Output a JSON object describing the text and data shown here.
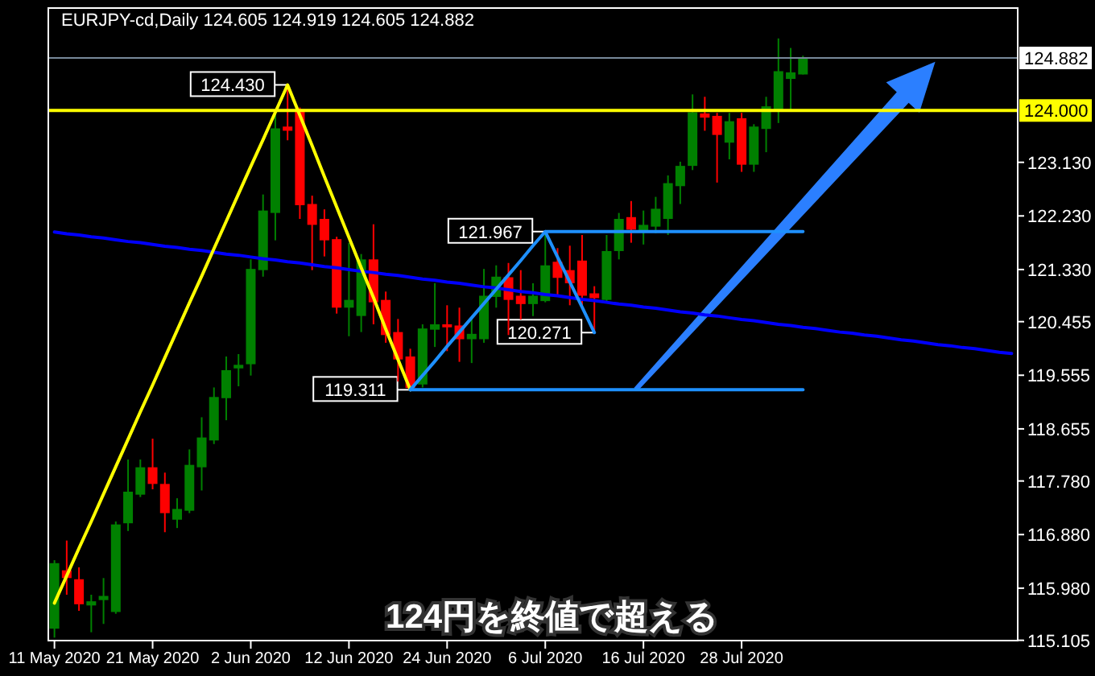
{
  "chart_data": {
    "type": "candlestick",
    "title": "EURJPY-cd,Daily  124.605 124.919 124.605 124.882",
    "annotations": [
      "124円を終値で超える"
    ],
    "categories": [
      "11 May 2020",
      null,
      null,
      null,
      null,
      null,
      null,
      null,
      "21 May 2020",
      null,
      null,
      null,
      null,
      null,
      null,
      null,
      "2 Jun 2020",
      null,
      null,
      null,
      null,
      null,
      null,
      null,
      "12 Jun 2020",
      null,
      null,
      null,
      null,
      null,
      null,
      null,
      "24 Jun 2020",
      null,
      null,
      null,
      null,
      null,
      null,
      null,
      "6 Jul 2020",
      null,
      null,
      null,
      null,
      null,
      null,
      null,
      "16 Jul 2020",
      null,
      null,
      null,
      null,
      null,
      null,
      null,
      "28 Jul 2020",
      null,
      null,
      null,
      null,
      null,
      null,
      null,
      null,
      null,
      null,
      null,
      null,
      null,
      null,
      null,
      null,
      null,
      null,
      null,
      null,
      null,
      null
    ],
    "ohlc": [
      [
        115.3,
        116.45,
        115.15,
        116.4
      ],
      [
        116.28,
        116.78,
        115.87,
        116.15
      ],
      [
        116.13,
        116.33,
        115.6,
        115.71
      ],
      [
        115.69,
        115.87,
        115.24,
        115.76
      ],
      [
        115.78,
        116.15,
        115.38,
        115.85
      ],
      [
        115.58,
        117.1,
        115.55,
        117.05
      ],
      [
        117.07,
        118.14,
        116.94,
        117.6
      ],
      [
        117.55,
        118.14,
        117.51,
        118.01
      ],
      [
        118.01,
        118.49,
        117.64,
        117.73
      ],
      [
        117.73,
        117.92,
        116.92,
        117.24
      ],
      [
        117.13,
        117.49,
        116.99,
        117.31
      ],
      [
        117.28,
        118.31,
        117.24,
        118.05
      ],
      [
        118.01,
        118.85,
        117.62,
        118.51
      ],
      [
        118.46,
        119.35,
        118.4,
        119.19
      ],
      [
        119.17,
        119.87,
        118.8,
        119.64
      ],
      [
        119.67,
        119.91,
        119.37,
        119.73
      ],
      [
        119.74,
        121.5,
        119.55,
        121.34
      ],
      [
        121.32,
        122.59,
        121.21,
        122.32
      ],
      [
        122.28,
        123.96,
        121.82,
        123.7
      ],
      [
        123.73,
        124.43,
        123.5,
        123.66
      ],
      [
        124.02,
        124.05,
        122.18,
        122.41
      ],
      [
        122.43,
        122.57,
        121.32,
        122.08
      ],
      [
        122.18,
        122.34,
        121.55,
        121.82
      ],
      [
        121.84,
        121.88,
        120.59,
        120.69
      ],
      [
        120.69,
        121.78,
        120.21,
        120.82
      ],
      [
        120.55,
        121.59,
        120.28,
        121.5
      ],
      [
        121.5,
        122.09,
        120.41,
        120.78
      ],
      [
        120.82,
        120.96,
        120.1,
        120.23
      ],
      [
        120.28,
        120.5,
        119.45,
        119.82
      ],
      [
        119.87,
        120.0,
        119.311,
        119.34
      ],
      [
        119.4,
        120.41,
        119.35,
        120.34
      ],
      [
        120.32,
        121.1,
        120.03,
        120.41
      ],
      [
        120.41,
        120.73,
        119.96,
        120.36
      ],
      [
        120.39,
        120.69,
        119.78,
        120.16
      ],
      [
        120.16,
        120.5,
        119.76,
        120.25
      ],
      [
        120.16,
        121.34,
        120.1,
        120.89
      ],
      [
        120.87,
        121.4,
        120.69,
        121.21
      ],
      [
        121.2,
        121.44,
        120.23,
        120.82
      ],
      [
        120.89,
        121.32,
        120.49,
        120.75
      ],
      [
        120.75,
        121.1,
        120.55,
        120.89
      ],
      [
        120.8,
        121.967,
        120.78,
        121.4
      ],
      [
        121.46,
        121.69,
        120.89,
        121.19
      ],
      [
        121.32,
        121.73,
        120.73,
        121.1
      ],
      [
        121.48,
        121.91,
        120.73,
        120.89
      ],
      [
        120.93,
        121.05,
        120.271,
        120.85
      ],
      [
        120.82,
        121.91,
        120.8,
        121.64
      ],
      [
        121.64,
        122.28,
        121.5,
        122.18
      ],
      [
        122.21,
        122.48,
        121.78,
        122.0
      ],
      [
        121.98,
        122.32,
        121.75,
        122.08
      ],
      [
        122.05,
        122.55,
        121.94,
        122.35
      ],
      [
        122.18,
        122.91,
        121.91,
        122.78
      ],
      [
        122.73,
        123.14,
        122.43,
        123.07
      ],
      [
        123.07,
        124.27,
        123.0,
        123.97
      ],
      [
        123.95,
        124.23,
        123.66,
        123.88
      ],
      [
        123.91,
        123.96,
        122.79,
        123.59
      ],
      [
        123.46,
        123.96,
        123.18,
        123.82
      ],
      [
        123.87,
        123.96,
        122.97,
        123.09
      ],
      [
        123.09,
        123.77,
        122.97,
        123.73
      ],
      [
        123.69,
        124.23,
        123.3,
        124.07
      ],
      [
        124.0,
        125.21,
        123.79,
        124.66
      ],
      [
        124.53,
        125.05,
        124.0,
        124.64
      ],
      [
        124.605,
        124.919,
        124.605,
        124.882
      ],
      null,
      null,
      null,
      null,
      null,
      null,
      null,
      null,
      null,
      null,
      null,
      null,
      null,
      null,
      null,
      null,
      null
    ],
    "colors": [
      "#008000",
      "#ff0000",
      "#ff0000",
      "#008000",
      "#008000",
      "#008000",
      "#008000",
      "#008000",
      "#ff0000",
      "#ff0000",
      "#008000",
      "#008000",
      "#008000",
      "#008000",
      "#008000",
      "#008000",
      "#008000",
      "#008000",
      "#008000",
      "#ff0000",
      "#ff0000",
      "#ff0000",
      "#ff0000",
      "#ff0000",
      "#008000",
      "#008000",
      "#ff0000",
      "#ff0000",
      "#ff0000",
      "#ff0000",
      "#008000",
      "#008000",
      "#ff0000",
      "#ff0000",
      "#008000",
      "#008000",
      "#008000",
      "#ff0000",
      "#ff0000",
      "#008000",
      "#008000",
      "#ff0000",
      "#ff0000",
      "#ff0000",
      "#ff0000",
      "#008000",
      "#008000",
      "#ff0000",
      "#008000",
      "#008000",
      "#008000",
      "#008000",
      "#008000",
      "#ff0000",
      "#ff0000",
      "#008000",
      "#ff0000",
      "#008000",
      "#008000",
      "#008000",
      "#008000",
      "#008000",
      null,
      null,
      null,
      null,
      null,
      null,
      null,
      null,
      null,
      null,
      null,
      null,
      null,
      null,
      null,
      null,
      null
    ],
    "series": [
      {
        "type": "line",
        "color": "#0000ff",
        "values": [
          121.96,
          121.93,
          121.91,
          121.88,
          121.86,
          121.83,
          121.8,
          121.78,
          121.75,
          121.72,
          121.7,
          121.67,
          121.65,
          121.62,
          121.59,
          121.57,
          121.54,
          121.51,
          121.49,
          121.46,
          121.44,
          121.41,
          121.38,
          121.36,
          121.33,
          121.3,
          121.28,
          121.25,
          121.23,
          121.2,
          121.17,
          121.15,
          121.12,
          121.1,
          121.07,
          121.04,
          121.02,
          120.99,
          120.96,
          120.94,
          120.91,
          120.89,
          120.86,
          120.83,
          120.81,
          120.78,
          120.75,
          120.73,
          120.7,
          120.68,
          120.65,
          120.62,
          120.6,
          120.57,
          120.55,
          120.52,
          120.49,
          120.47,
          120.44,
          120.41,
          120.39,
          120.36,
          120.34,
          120.31,
          120.28,
          120.26,
          120.23,
          120.21,
          120.18,
          120.15,
          120.13,
          120.1,
          120.07,
          120.05,
          120.02,
          120.0,
          119.97,
          119.94,
          119.92
        ]
      },
      {
        "type": "line",
        "color": "#ffff00",
        "values": [
          115.73,
          116.19,
          116.65,
          117.1,
          117.56,
          118.02,
          118.48,
          118.94,
          119.39,
          119.85,
          120.31,
          120.77,
          121.22,
          121.68,
          122.14,
          122.6,
          123.06,
          123.51,
          123.97,
          124.43,
          123.92,
          123.41,
          122.89,
          122.38,
          121.87,
          121.36,
          120.86,
          120.33,
          119.82,
          119.311,
          null,
          null,
          null,
          null,
          null,
          null,
          null,
          null,
          null,
          null,
          null,
          null,
          null,
          null,
          null,
          null,
          null,
          null,
          null,
          null,
          null,
          null,
          null,
          null,
          null,
          null,
          null,
          null,
          null,
          null,
          null,
          null,
          null,
          null,
          null,
          null,
          null,
          null,
          null,
          null,
          null,
          null,
          null,
          null,
          null,
          null,
          null,
          null,
          null
        ],
        "value_labels": [
          null,
          null,
          null,
          null,
          null,
          null,
          null,
          null,
          null,
          null,
          null,
          null,
          null,
          null,
          null,
          null,
          null,
          null,
          null,
          "124.430",
          null,
          null,
          null,
          null,
          null,
          null,
          null,
          null,
          null,
          "119.311",
          null,
          null,
          null,
          null,
          null,
          null,
          null,
          null,
          null,
          null,
          null,
          null,
          null,
          null,
          null,
          null,
          null,
          null,
          null,
          null,
          null,
          null,
          null,
          null,
          null,
          null,
          null,
          null,
          null,
          null,
          null,
          null,
          null,
          null,
          null,
          null,
          null,
          null,
          null,
          null,
          null,
          null,
          null,
          null,
          null,
          null,
          null,
          null,
          null
        ]
      },
      {
        "type": "line",
        "color": "#1e90ff",
        "values": [
          null,
          null,
          null,
          null,
          null,
          null,
          null,
          null,
          null,
          null,
          null,
          null,
          null,
          null,
          null,
          null,
          null,
          null,
          null,
          null,
          null,
          null,
          null,
          null,
          null,
          null,
          null,
          null,
          null,
          119.311,
          119.55,
          119.79,
          120.04,
          120.28,
          120.52,
          120.76,
          121.0,
          121.24,
          121.48,
          121.73,
          121.967,
          121.54,
          121.12,
          120.7,
          120.271,
          null,
          null,
          null,
          null,
          null,
          null,
          null,
          null,
          null,
          null,
          null,
          null,
          null,
          null,
          null,
          null,
          null,
          null,
          null,
          null,
          null,
          null,
          null,
          null,
          null,
          null,
          null,
          null,
          null,
          null,
          null,
          null,
          null,
          null
        ],
        "value_labels": [
          null,
          null,
          null,
          null,
          null,
          null,
          null,
          null,
          null,
          null,
          null,
          null,
          null,
          null,
          null,
          null,
          null,
          null,
          null,
          null,
          null,
          null,
          null,
          null,
          null,
          null,
          null,
          null,
          null,
          null,
          null,
          null,
          null,
          null,
          null,
          null,
          null,
          null,
          null,
          null,
          "121.967",
          null,
          null,
          null,
          "120.271",
          null,
          null,
          null,
          null,
          null,
          null,
          null,
          null,
          null,
          null,
          null,
          null,
          null,
          null,
          null,
          null,
          null,
          null,
          null,
          null,
          null,
          null,
          null,
          null,
          null,
          null,
          null,
          null,
          null,
          null,
          null,
          null,
          null,
          null
        ]
      },
      {
        "type": "line",
        "color": "#1e90ff",
        "values": [
          null,
          null,
          null,
          null,
          null,
          null,
          null,
          null,
          null,
          null,
          null,
          null,
          null,
          null,
          null,
          null,
          null,
          null,
          null,
          null,
          null,
          null,
          null,
          null,
          null,
          null,
          null,
          null,
          null,
          null,
          null,
          null,
          null,
          null,
          null,
          null,
          null,
          null,
          null,
          null,
          121.967,
          121.967,
          121.967,
          121.967,
          121.967,
          121.967,
          121.967,
          121.967,
          121.967,
          121.967,
          121.967,
          121.967,
          121.967,
          121.967,
          121.967,
          121.967,
          121.967,
          121.967,
          121.967,
          121.967,
          121.967,
          121.967,
          null,
          null,
          null,
          null,
          null,
          null,
          null,
          null,
          null,
          null,
          null,
          null,
          null,
          null,
          null,
          null,
          null
        ]
      },
      {
        "type": "line",
        "color": "#1e90ff",
        "values": [
          null,
          null,
          null,
          null,
          null,
          null,
          null,
          null,
          null,
          null,
          null,
          null,
          null,
          null,
          null,
          null,
          null,
          null,
          null,
          null,
          null,
          null,
          null,
          null,
          null,
          null,
          null,
          null,
          null,
          119.311,
          119.311,
          119.311,
          119.311,
          119.311,
          119.311,
          119.311,
          119.311,
          119.311,
          119.311,
          119.311,
          119.311,
          119.311,
          119.311,
          119.311,
          119.311,
          119.311,
          119.311,
          119.311,
          119.311,
          119.311,
          119.311,
          119.311,
          119.311,
          119.311,
          119.311,
          119.311,
          119.311,
          119.311,
          119.311,
          119.311,
          119.311,
          119.311,
          null,
          null,
          null,
          null,
          null,
          null,
          null,
          null,
          null,
          null,
          null,
          null,
          null,
          null,
          null,
          null,
          null
        ]
      }
    ],
    "ylim": [
      115.1,
      125.72
    ],
    "yticks": [
      {
        "value": 123.13,
        "label": "123.130"
      },
      {
        "value": 122.23,
        "label": "122.230"
      },
      {
        "value": 121.33,
        "label": "121.330"
      },
      {
        "value": 120.455,
        "label": "120.455"
      },
      {
        "value": 119.555,
        "label": "119.555"
      },
      {
        "value": 118.655,
        "label": "118.655"
      },
      {
        "value": 117.78,
        "label": "117.780"
      },
      {
        "value": 116.88,
        "label": "116.880"
      },
      {
        "value": 115.98,
        "label": "115.980"
      },
      {
        "value": 115.105,
        "label": "115.105"
      }
    ],
    "ref_lines": [
      {
        "axis": "y",
        "value": 124.882,
        "label": "124.882",
        "color": "#778899"
      },
      {
        "axis": "y",
        "value": 124,
        "label": "124.000",
        "color": "#ffff00"
      }
    ]
  }
}
